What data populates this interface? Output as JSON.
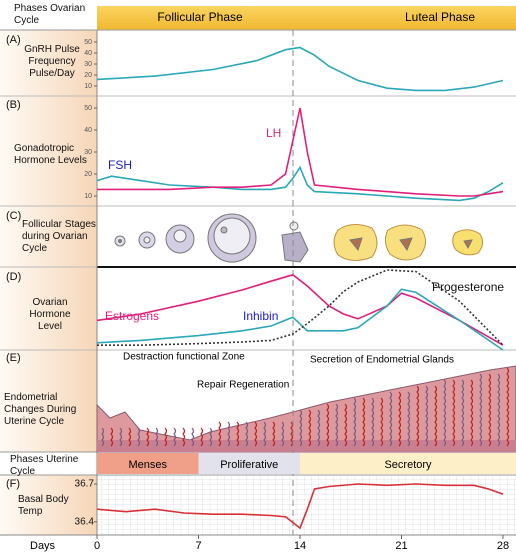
{
  "header": {
    "title": "Phases Ovarian Cycle",
    "phases": [
      "Follicular Phase",
      "Luteal Phase"
    ]
  },
  "chart_data": [
    {
      "type": "line",
      "label": "(A)",
      "title": "GnRH Pulse Frequency Pulse/Day",
      "x": [
        0,
        4,
        8,
        11,
        13,
        14,
        15,
        16,
        18,
        20,
        22,
        24,
        26,
        28
      ],
      "values": [
        16,
        19,
        25,
        33,
        43,
        45,
        38,
        28,
        15,
        8,
        6,
        6,
        9,
        15
      ],
      "color": "#2aa8b8",
      "xlim": [
        0,
        28
      ],
      "ylim": [
        0,
        60
      ],
      "yticks": [
        10,
        20,
        30,
        40,
        50
      ]
    },
    {
      "type": "line",
      "label": "(B)",
      "title": "Gonadotropic Hormone Levels",
      "x": [
        0,
        1,
        3,
        5,
        8,
        10,
        12,
        13,
        13.5,
        14,
        14.5,
        15,
        18,
        20,
        22,
        25,
        26,
        27,
        28
      ],
      "series": [
        {
          "name": "FSH",
          "color": "#2aa8b8",
          "values": [
            17,
            19,
            17,
            15,
            14,
            13,
            13,
            14,
            18,
            23,
            15,
            12,
            11,
            10,
            9,
            8,
            9,
            12,
            16
          ]
        },
        {
          "name": "LH",
          "color": "#e0207a",
          "values": [
            13,
            13,
            13,
            13,
            14,
            14,
            15,
            20,
            35,
            50,
            30,
            15,
            13,
            12,
            11,
            10,
            10,
            11,
            12
          ]
        }
      ],
      "xlim": [
        0,
        28
      ],
      "ylim": [
        5,
        55
      ],
      "yticks": [
        10,
        20,
        30,
        40,
        50
      ]
    },
    {
      "type": "line",
      "label": "(D)",
      "title": "Ovarian Hormone Level",
      "x": [
        0,
        3,
        7,
        10,
        12,
        13.5,
        14.5,
        16,
        17,
        18,
        20,
        21,
        22,
        25,
        28
      ],
      "series": [
        {
          "name": "Estrogens",
          "color": "#e0207a",
          "values": [
            37,
            45,
            61,
            75,
            86,
            94,
            80,
            55,
            45,
            39,
            55,
            71,
            65,
            37,
            6
          ]
        },
        {
          "name": "Inhibin",
          "color": "#2aa8b8",
          "values": [
            9,
            12,
            18,
            24,
            30,
            41,
            24,
            24,
            24,
            28,
            55,
            76,
            72,
            37,
            0
          ]
        },
        {
          "name": "Progesterone",
          "color": "#333333",
          "style": "dotted",
          "values": [
            6,
            6,
            8,
            10,
            12,
            20,
            33,
            55,
            73,
            85,
            100,
            99,
            98,
            61,
            6
          ]
        }
      ],
      "xlim": [
        0,
        28
      ],
      "ylim": [
        0,
        100
      ]
    },
    {
      "type": "line",
      "label": "(F)",
      "title": "Basal Body Temp",
      "x": [
        0,
        2,
        4,
        6,
        8,
        10,
        12,
        13,
        14,
        14.5,
        15,
        16,
        18,
        20,
        22,
        24,
        26,
        27,
        28
      ],
      "values": [
        36.5,
        36.48,
        36.5,
        36.47,
        36.46,
        36.46,
        36.45,
        36.44,
        36.35,
        36.5,
        36.66,
        36.68,
        36.7,
        36.69,
        36.7,
        36.69,
        36.69,
        36.66,
        36.62
      ],
      "color": "#d8303a",
      "xlim": [
        0,
        28
      ],
      "ylim": [
        36.3,
        36.8
      ],
      "yticks": [
        36.4,
        36.7
      ],
      "xticks": [
        0,
        7,
        14,
        21,
        28
      ]
    }
  ],
  "follicles": {
    "label": "(C)",
    "title": "Follicular Stages during Ovarian Cycle"
  },
  "endometrium": {
    "label": "(E)",
    "title": "Endometrial Changes During Uterine Cycle",
    "annotations": [
      "Destraction functional Zone",
      "Repair Regeneration",
      "Secretion of Endometrial Glands"
    ]
  },
  "uterine_phases": {
    "title": "Phases Uterine Cycle",
    "phases": [
      {
        "name": "Menses",
        "start": 0,
        "end": 7,
        "color": "#f0a088"
      },
      {
        "name": "Proliferative",
        "start": 7,
        "end": 14,
        "color": "#e2e2ec"
      },
      {
        "name": "Secretory",
        "start": 14,
        "end": 28,
        "color": "#fdf0c8"
      }
    ]
  },
  "days_label": "Days"
}
